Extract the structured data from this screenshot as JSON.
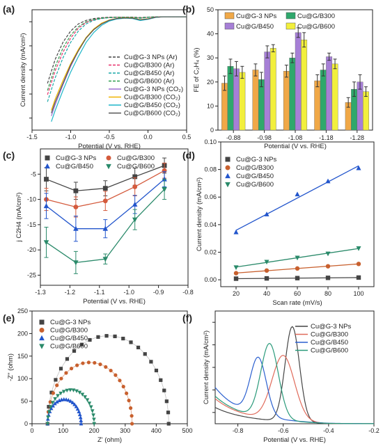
{
  "figure": {
    "panels": [
      {
        "id": "a",
        "label": "(a)",
        "type": "line",
        "xlabel": "Potential (V vs. RHE)",
        "ylabel": "Current density (mA/cm²)",
        "xlim": [
          -1.5,
          0.5
        ],
        "xticks": [
          "-1.5",
          "-1.0",
          "-0.5",
          "0.0",
          "0.5"
        ],
        "y_tick_labels_shown": false,
        "legend": "bottom-right"
      },
      {
        "id": "b",
        "label": "(b)",
        "type": "bar",
        "xlabel": "Potential (V vs. RHE)",
        "ylabel": "FE of C₂H₄ (%)",
        "ylim": [
          0,
          50
        ],
        "yticks": [
          "0",
          "10",
          "20",
          "30",
          "40",
          "50"
        ],
        "legend": "top"
      },
      {
        "id": "c",
        "label": "(c)",
        "type": "line",
        "xlabel": "Potential (V vs. RHE)",
        "ylabel": "j C2H4 (mA/cm²)",
        "xlim": [
          -1.3,
          -0.8
        ],
        "ylim": [
          -27,
          0
        ],
        "xticks": [
          "-1.3",
          "-1.2",
          "-1.1",
          "-1.0",
          "-0.9",
          "-0.8"
        ],
        "yticks": [
          "-25",
          "-20",
          "-15",
          "-10",
          "-5"
        ],
        "legend": "top-left"
      },
      {
        "id": "d",
        "label": "(d)",
        "type": "scatter",
        "xlabel": "Scan rate (mV/s)",
        "ylabel": "Current density (mA/cm²)",
        "xlim": [
          10,
          110
        ],
        "ylim": [
          -0.005,
          0.1
        ],
        "xticks": [
          "20",
          "40",
          "60",
          "80",
          "100"
        ],
        "yticks": [
          "0.00",
          "0.02",
          "0.04",
          "0.06",
          "0.08",
          "0.10"
        ],
        "legend": "top-left"
      },
      {
        "id": "e",
        "label": "(e)",
        "type": "scatter",
        "xlabel": "Z' (ohm)",
        "ylabel": "-Z\" (ohm)",
        "xlim": [
          0,
          500
        ],
        "ylim": [
          0,
          250
        ],
        "xticks": [
          "0",
          "100",
          "200",
          "300",
          "400",
          "500"
        ],
        "yticks": [
          "0",
          "50",
          "100",
          "150",
          "200",
          "250"
        ],
        "legend": "top-left"
      },
      {
        "id": "f",
        "label": "(f)",
        "type": "line",
        "xlabel": "Potential (V vs. RHE)",
        "ylabel": "Current density (mA/cm²)",
        "xlim": [
          -0.9,
          -0.2
        ],
        "ylim": [
          0,
          90
        ],
        "xticks": [
          "-0.8",
          "-0.6",
          "-0.4",
          "-0.2"
        ],
        "y_tick_labels_shown": false,
        "legend": "top-right"
      }
    ]
  },
  "chart_data": [
    {
      "type": "line",
      "panel": "a",
      "xlabel": "Potential (V vs. RHE)",
      "ylabel": "Current density (mA/cm²)",
      "xlim": [
        -1.5,
        0.5
      ],
      "ylim": [
        -80,
        5
      ],
      "series": [
        {
          "name": "Cu@G-3 NPs (Ar)",
          "color": "#444444",
          "dash": true,
          "x": [
            -1.3,
            -1.2,
            -1.1,
            -1.0,
            -0.9,
            -0.8,
            -0.7,
            -0.6,
            -0.5,
            -0.4,
            -0.3,
            -0.2,
            -0.1,
            0.0,
            0.1,
            0.2,
            0.3,
            0.4,
            0.5
          ],
          "y": [
            -47,
            -30,
            -18,
            -10,
            -5,
            -2.5,
            -1.2,
            -0.6,
            -0.3,
            -0.2,
            -0.2,
            -0.2,
            -0.5,
            -0.2,
            0,
            0,
            0,
            0,
            0
          ]
        },
        {
          "name": "Cu@G/B300 (Ar)",
          "color": "#e8306b",
          "dash": true,
          "x": [
            -1.3,
            -1.2,
            -1.1,
            -1.0,
            -0.9,
            -0.8,
            -0.7,
            -0.6,
            -0.5,
            -0.4,
            -0.3,
            -0.2,
            -0.1,
            0.0,
            0.1,
            0.2,
            0.3,
            0.4,
            0.5
          ],
          "y": [
            -55,
            -38,
            -25,
            -15,
            -8,
            -4,
            -2,
            -1,
            -0.5,
            -0.3,
            -0.3,
            -0.4,
            -0.8,
            -0.3,
            0,
            0,
            0,
            0,
            0
          ]
        },
        {
          "name": "Cu@G/B450 (Ar)",
          "color": "#1aa8a8",
          "dash": true,
          "x": [
            -1.3,
            -1.2,
            -1.1,
            -1.0,
            -0.9,
            -0.8,
            -0.7,
            -0.6,
            -0.5,
            -0.4,
            -0.3,
            -0.2,
            -0.1,
            0.0,
            0.1,
            0.2,
            0.3,
            0.4,
            0.5
          ],
          "y": [
            -60,
            -43,
            -29,
            -18,
            -10,
            -5,
            -2.5,
            -1.2,
            -0.6,
            -0.4,
            -0.4,
            -0.5,
            -1.0,
            -0.4,
            0,
            0,
            0,
            0,
            0
          ]
        },
        {
          "name": "Cu@G/B600 (Ar)",
          "color": "#2e9e4f",
          "dash": true,
          "x": [
            -1.3,
            -1.2,
            -1.1,
            -1.0,
            -0.9,
            -0.8,
            -0.7,
            -0.6,
            -0.5,
            -0.4,
            -0.3,
            -0.2,
            -0.1,
            0.0,
            0.1,
            0.2,
            0.3,
            0.4,
            0.5
          ],
          "y": [
            -52,
            -35,
            -22,
            -13,
            -7,
            -3.5,
            -1.8,
            -0.9,
            -0.5,
            -0.3,
            -0.3,
            -0.4,
            -0.7,
            -0.3,
            0,
            0,
            0,
            0,
            0
          ]
        },
        {
          "name": "Cu@G-3 NPs (CO₂)",
          "color": "#9b6fd0",
          "dash": false,
          "x": [
            -1.25,
            -1.2,
            -1.1,
            -1.0,
            -0.9,
            -0.8,
            -0.7,
            -0.6,
            -0.5,
            -0.4,
            -0.3,
            -0.2,
            -0.1,
            0.0,
            0.1,
            0.2,
            0.3,
            0.4,
            0.5
          ],
          "y": [
            -70,
            -62,
            -48,
            -35,
            -24,
            -15,
            -9,
            -5,
            -2.5,
            -1.2,
            -0.8,
            -1.0,
            -2.2,
            -1.5,
            -0.3,
            0,
            0,
            0,
            0
          ]
        },
        {
          "name": "Cu@G/B300 (CO₂)",
          "color": "#f0b400",
          "dash": false,
          "x": [
            -1.25,
            -1.2,
            -1.1,
            -1.0,
            -0.9,
            -0.8,
            -0.7,
            -0.6,
            -0.5,
            -0.4,
            -0.3,
            -0.2,
            -0.1,
            0.0,
            0.1,
            0.2,
            0.3,
            0.4,
            0.5
          ],
          "y": [
            -66,
            -58,
            -45,
            -33,
            -23,
            -14.5,
            -8.5,
            -4.5,
            -2.2,
            -1.1,
            -0.7,
            -0.9,
            -2.0,
            -1.4,
            -0.3,
            0,
            0,
            0,
            0
          ]
        },
        {
          "name": "Cu@G/B450 (CO₂)",
          "color": "#1fb6c9",
          "dash": false,
          "x": [
            -1.25,
            -1.2,
            -1.1,
            -1.0,
            -0.9,
            -0.8,
            -0.7,
            -0.6,
            -0.5,
            -0.4,
            -0.3,
            -0.2,
            -0.1,
            0.0,
            0.1,
            0.2,
            0.3,
            0.4,
            0.5
          ],
          "y": [
            -74,
            -66,
            -52,
            -39,
            -28,
            -18,
            -11,
            -6,
            -3,
            -1.5,
            -1.0,
            -1.2,
            -2.6,
            -1.8,
            -0.4,
            0,
            0,
            0,
            0
          ]
        },
        {
          "name": "Cu@G/B600 (CO₂)",
          "color": "#555555",
          "dash": false,
          "x": [
            -1.25,
            -1.2,
            -1.1,
            -1.0,
            -0.9,
            -0.8,
            -0.7,
            -0.6,
            -0.5,
            -0.4,
            -0.3,
            -0.2,
            -0.1,
            0.0,
            0.1,
            0.2,
            0.3,
            0.4,
            0.5
          ],
          "y": [
            -68,
            -60,
            -47,
            -34,
            -24,
            -15,
            -9,
            -5,
            -2.4,
            -1.2,
            -0.8,
            -1.0,
            -2.1,
            -1.5,
            -0.3,
            0,
            0,
            0,
            0
          ]
        }
      ]
    },
    {
      "type": "bar",
      "panel": "b",
      "xlabel": "Potential (V vs. RHE)",
      "ylabel": "FE of C₂H₄ (%)",
      "ylim": [
        0,
        50
      ],
      "categories": [
        "-0.88",
        "-0.98",
        "-1.08",
        "-1.18",
        "-1.28"
      ],
      "series": [
        {
          "name": "Cu@G-3 NPs",
          "color": "#f0a847",
          "values": [
            19.5,
            25,
            24.5,
            20.5,
            11.5
          ],
          "errors": [
            3,
            2.5,
            2.5,
            2.5,
            2
          ]
        },
        {
          "name": "Cu@G/B300",
          "color": "#2fa86c",
          "values": [
            26.5,
            21,
            30,
            25,
            17
          ],
          "errors": [
            3,
            3,
            2,
            2.5,
            3
          ]
        },
        {
          "name": "Cu@G/B450",
          "color": "#a67fd6",
          "values": [
            25.5,
            32.5,
            40.5,
            30.5,
            20
          ],
          "errors": [
            3,
            2.5,
            2,
            1.5,
            3
          ]
        },
        {
          "name": "Cu@G/B600",
          "color": "#f2ef3c",
          "values": [
            24,
            34,
            37.5,
            27.5,
            16
          ],
          "errors": [
            2.5,
            1.5,
            3,
            2,
            2
          ]
        }
      ]
    },
    {
      "type": "line",
      "panel": "c",
      "xlabel": "Potential (V vs. RHE)",
      "ylabel": "j C2H4 (mA/cm²)",
      "xlim": [
        -1.3,
        -0.8
      ],
      "ylim": [
        -27,
        0
      ],
      "x": [
        -1.28,
        -1.18,
        -1.08,
        -0.98,
        -0.88
      ],
      "series": [
        {
          "name": "Cu@G-3 NPs",
          "color": "#444444",
          "marker": "square",
          "values": [
            -6,
            -8.3,
            -7.8,
            -5.5,
            -3.3
          ],
          "errors": [
            2.3,
            1.7,
            1.5,
            1.7,
            1.5
          ]
        },
        {
          "name": "Cu@G/B300",
          "color": "#d45a3c",
          "marker": "circle",
          "values": [
            -10,
            -11.5,
            -10.3,
            -7.5,
            -4.3
          ],
          "errors": [
            2.2,
            2.0,
            1.9,
            1.8,
            1.5
          ]
        },
        {
          "name": "Cu@G/B450",
          "color": "#2255cc",
          "marker": "triangle-up",
          "values": [
            -11.3,
            -15.8,
            -15.8,
            -11,
            -6
          ],
          "errors": [
            2.5,
            2.5,
            1.8,
            1.8,
            1.5
          ]
        },
        {
          "name": "Cu@G/B600",
          "color": "#2a8a6a",
          "marker": "triangle-down",
          "values": [
            -18.5,
            -22.5,
            -21.8,
            -14,
            -8
          ],
          "errors": [
            3,
            2.2,
            1.0,
            2.0,
            2.0
          ]
        }
      ]
    },
    {
      "type": "scatter",
      "panel": "d",
      "xlabel": "Scan rate (mV/s)",
      "ylabel": "Current density (mA/cm²)",
      "xlim": [
        10,
        110
      ],
      "ylim": [
        -0.005,
        0.1
      ],
      "x": [
        20,
        40,
        60,
        80,
        100
      ],
      "series": [
        {
          "name": "Cu@G-3 NPs",
          "color": "#444444",
          "marker": "square",
          "values": [
            0.0008,
            0.001,
            0.0012,
            0.0014,
            0.0016
          ]
        },
        {
          "name": "Cu@G/B300",
          "color": "#c8602e",
          "marker": "circle",
          "values": [
            0.0048,
            0.0067,
            0.0082,
            0.0098,
            0.0115
          ]
        },
        {
          "name": "Cu@G/B450",
          "color": "#2255cc",
          "marker": "triangle-up",
          "values": [
            0.0345,
            0.0475,
            0.062,
            0.0715,
            0.081
          ]
        },
        {
          "name": "Cu@G/B600",
          "color": "#2a8a6a",
          "marker": "triangle-down",
          "values": [
            0.009,
            0.013,
            0.016,
            0.019,
            0.0228
          ]
        }
      ]
    },
    {
      "type": "scatter",
      "panel": "e",
      "xlabel": "Z' (ohm)",
      "ylabel": "-Z\" (ohm)",
      "xlim": [
        0,
        500
      ],
      "ylim": [
        0,
        250
      ],
      "series": [
        {
          "name": "Cu@G-3 NPs",
          "color": "#444444",
          "marker": "square",
          "arc": {
            "r0": 50,
            "r1": 440
          }
        },
        {
          "name": "Cu@G/B300",
          "color": "#c8602e",
          "marker": "circle",
          "arc": {
            "r0": 50,
            "r1": 322
          }
        },
        {
          "name": "Cu@G/B450",
          "color": "#2255cc",
          "marker": "triangle-up",
          "arc": {
            "r0": 50,
            "r1": 158
          }
        },
        {
          "name": "Cu@G/B600",
          "color": "#2a8a6a",
          "marker": "triangle-down",
          "arc": {
            "r0": 50,
            "r1": 200
          }
        }
      ]
    },
    {
      "type": "line",
      "panel": "f",
      "xlabel": "Potential (V vs. RHE)",
      "ylabel": "Current density (mA/cm²)",
      "xlim": [
        -0.9,
        -0.2
      ],
      "ylim": [
        0,
        90
      ],
      "series": [
        {
          "name": "Cu@G-3 NPs",
          "color": "#444444",
          "peak": {
            "x": -0.56,
            "height": 76,
            "width": 0.045,
            "tail": 10
          }
        },
        {
          "name": "Cu@G/B300",
          "color": "#e06a5a",
          "peak": {
            "x": -0.6,
            "height": 52,
            "width": 0.07,
            "tail": 17
          }
        },
        {
          "name": "Cu@G/B450",
          "color": "#2a5fcf",
          "peak": {
            "x": -0.71,
            "height": 46,
            "width": 0.05,
            "tail": 26
          }
        },
        {
          "name": "Cu@G/B600",
          "color": "#2a9a7a",
          "peak": {
            "x": -0.66,
            "height": 60,
            "width": 0.055,
            "tail": 19
          }
        }
      ]
    }
  ]
}
